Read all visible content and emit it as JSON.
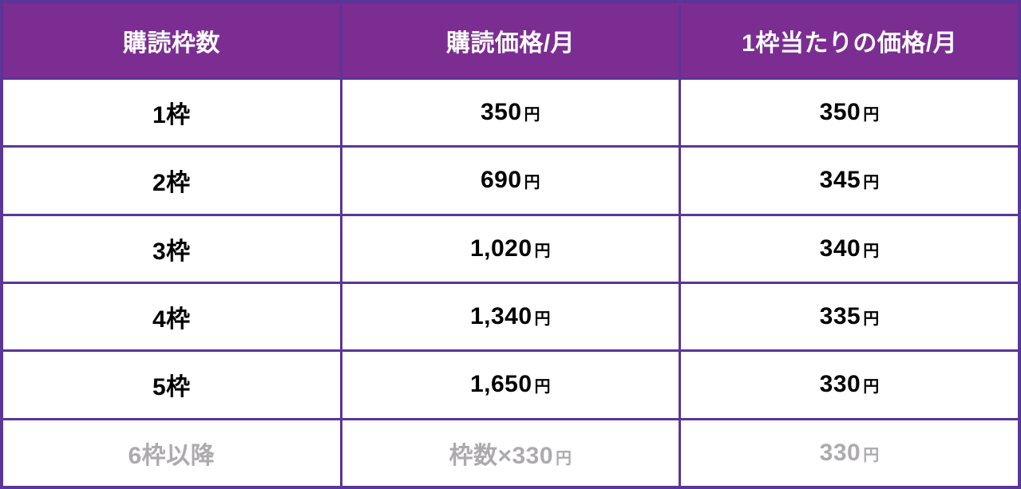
{
  "chart_data": {
    "type": "table",
    "columns": [
      "購読枠数",
      "購読価格/月",
      "1枠当たりの価格/月"
    ],
    "rows": [
      [
        "1枠",
        "350円",
        "350円"
      ],
      [
        "2枠",
        "690円",
        "345円"
      ],
      [
        "3枠",
        "1,020円",
        "340円"
      ],
      [
        "4枠",
        "1,340円",
        "335円"
      ],
      [
        "5枠",
        "1,650円",
        "330円"
      ],
      [
        "6枠以降",
        "枠数×330円",
        "330円"
      ]
    ]
  },
  "rows": [
    {
      "slots": "1枠",
      "price_amount": "350",
      "price_unit": "円",
      "per_amount": "350",
      "per_unit": "円"
    },
    {
      "slots": "2枠",
      "price_amount": "690",
      "price_unit": "円",
      "per_amount": "345",
      "per_unit": "円"
    },
    {
      "slots": "3枠",
      "price_amount": "1,020",
      "price_unit": "円",
      "per_amount": "340",
      "per_unit": "円"
    },
    {
      "slots": "4枠",
      "price_amount": "1,340",
      "price_unit": "円",
      "per_amount": "335",
      "per_unit": "円"
    },
    {
      "slots": "5枠",
      "price_amount": "1,650",
      "price_unit": "円",
      "per_amount": "330",
      "per_unit": "円"
    },
    {
      "slots": "6枠以降",
      "price_amount": "枠数×330",
      "price_unit": "円",
      "per_amount": "330",
      "per_unit": "円"
    }
  ],
  "colors": {
    "header_bg": "#7C2D92",
    "header_text": "#FFFFFF",
    "border": "#5B3597",
    "body_text": "#000000",
    "muted_text": "#ACAAAD",
    "row_bg": "#FFFFFF"
  }
}
